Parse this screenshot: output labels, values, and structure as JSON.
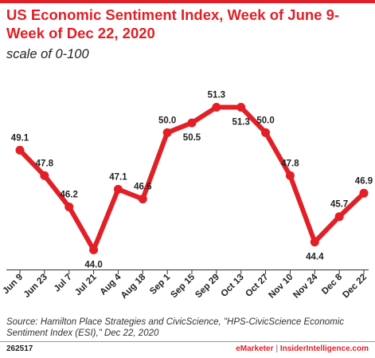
{
  "colors": {
    "accent": "#e21f26",
    "text": "#222222",
    "axis": "#333333"
  },
  "chart_data": {
    "type": "line",
    "title": "US Economic Sentiment Index, Week of June 9-Week of Dec 22, 2020",
    "subtitle": "scale of 0-100",
    "categories": [
      "Jun 9",
      "Jun 23",
      "Jul 7",
      "Jul 21",
      "Aug 4",
      "Aug 18",
      "Sep 1",
      "Sep 15",
      "Sep 29",
      "Oct 13",
      "Oct 27",
      "Nov 10",
      "Nov 24",
      "Dec 8",
      "Dec 22"
    ],
    "values": [
      49.1,
      47.8,
      46.2,
      44.0,
      47.1,
      46.6,
      50.0,
      50.5,
      51.3,
      51.3,
      50.0,
      47.8,
      44.4,
      45.7,
      46.9
    ],
    "labels": [
      "49.1",
      "47.8",
      "46.2",
      "44.0",
      "47.1",
      "46.6",
      "50.0",
      "50.5",
      "51.3",
      "51.3",
      "50.0",
      "47.8",
      "44.4",
      "45.7",
      "46.9"
    ],
    "label_position": [
      "above",
      "above",
      "above",
      "below",
      "above",
      "above",
      "above",
      "below",
      "above",
      "below",
      "above",
      "above",
      "below",
      "above",
      "above"
    ],
    "ylim": [
      42.3,
      52.3
    ],
    "grid": false,
    "legend": "none"
  },
  "source": "Source: Hamilton Place Strategies and CivicScience, \"HPS-CivicScience Economic Sentiment Index (ESI),\" Dec 22, 2020",
  "footer": {
    "id": "262517",
    "brand1": "eMarketer",
    "separator": "|",
    "brand2": "InsiderIntelligence.com"
  }
}
